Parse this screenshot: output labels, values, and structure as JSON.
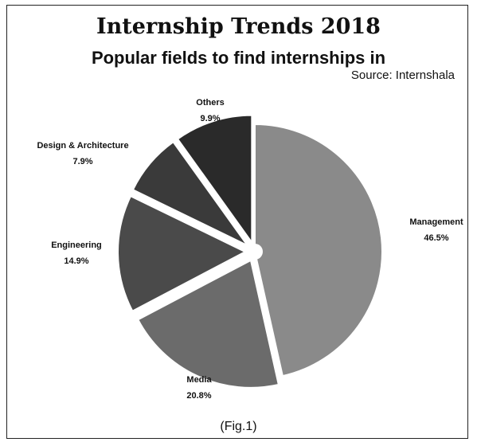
{
  "chart_data": {
    "type": "pie",
    "title": "Internship Trends 2018",
    "subtitle": "Popular fields to find internships in",
    "source": "Source: Internshala",
    "caption": "(Fig.1)",
    "slices": [
      {
        "label": "Management",
        "value": 46.5,
        "value_label": "46.5%",
        "color": "#8a8a8a",
        "exploded": false
      },
      {
        "label": "Media",
        "value": 20.8,
        "value_label": "20.8%",
        "color": "#6b6b6b",
        "exploded": true
      },
      {
        "label": "Engineering",
        "value": 14.9,
        "value_label": "14.9%",
        "color": "#4a4a4a",
        "exploded": true
      },
      {
        "label": "Design & Architecture",
        "value": 7.9,
        "value_label": "7.9%",
        "color": "#3a3a3a",
        "exploded": true
      },
      {
        "label": "Others",
        "value": 9.9,
        "value_label": "9.9%",
        "color": "#2a2a2a",
        "exploded": true
      }
    ],
    "legend": "none"
  }
}
